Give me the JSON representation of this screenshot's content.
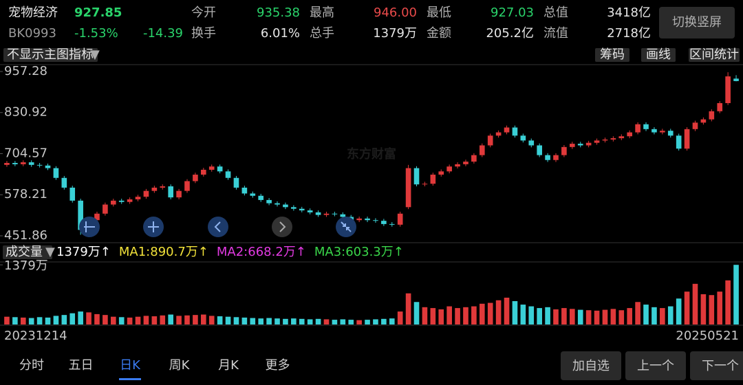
{
  "header": {
    "name": "宠物经济",
    "price": "927.85",
    "code": "BK0993",
    "change_pct": "-1.53%",
    "change": "-14.39",
    "stats": [
      {
        "label": "今开",
        "value": "935.38",
        "tone": "green"
      },
      {
        "label": "最高",
        "value": "946.00",
        "tone": "red"
      },
      {
        "label": "最低",
        "value": "927.03",
        "tone": "green"
      },
      {
        "label": "总值",
        "value": "3418亿",
        "tone": "white"
      },
      {
        "label": "换手",
        "value": "6.01%",
        "tone": "white"
      },
      {
        "label": "总手",
        "value": "1379万",
        "tone": "white"
      },
      {
        "label": "金额",
        "value": "205.2亿",
        "tone": "white"
      },
      {
        "label": "流值",
        "value": "2718亿",
        "tone": "white"
      }
    ],
    "button": "切换竖屏"
  },
  "toolbar": {
    "indicator": "不显示主图指标",
    "buttons": [
      "筹码",
      "画线",
      "区间统计"
    ]
  },
  "watermark": "东方财富",
  "volume_legend": {
    "title": "成交量",
    "items": [
      {
        "text": "1379万↑",
        "color": "#ffffff"
      },
      {
        "text": "MA1:890.7万↑",
        "color": "#f2e23a"
      },
      {
        "text": "MA2:668.2万↑",
        "color": "#e23ae2"
      },
      {
        "text": "MA3:603.3万↑",
        "color": "#3ad64a"
      }
    ]
  },
  "chart_data": [
    {
      "type": "candlestick",
      "up_color": "#e0393a",
      "down_color": "#3ad0d6",
      "ylim": [
        432.8,
        976.3
      ],
      "yticks": [
        451.86,
        578.21,
        704.57,
        830.92,
        957.28
      ],
      "date_range": [
        "20231214",
        "20250521"
      ],
      "open": [
        670,
        676,
        672,
        678,
        670,
        668,
        660,
        630,
        600,
        560,
        470,
        500,
        520,
        548,
        560,
        556,
        564,
        572,
        590,
        600,
        604,
        570,
        590,
        620,
        640,
        655,
        665,
        650,
        630,
        600,
        582,
        575,
        562,
        552,
        548,
        540,
        535,
        530,
        524,
        516,
        520,
        518,
        510,
        500,
        505,
        500,
        498,
        488,
        486,
        540,
        660,
        610,
        612,
        640,
        650,
        665,
        672,
        680,
        700,
        730,
        760,
        770,
        785,
        760,
        745,
        730,
        700,
        685,
        700,
        725,
        735,
        730,
        738,
        745,
        748,
        752,
        758,
        770,
        795,
        780,
        770,
        775,
        760,
        720,
        780,
        800,
        810,
        835,
        860,
        935.38
      ],
      "close": [
        676,
        672,
        678,
        670,
        668,
        660,
        630,
        600,
        560,
        470,
        500,
        520,
        548,
        560,
        556,
        564,
        572,
        590,
        600,
        604,
        570,
        590,
        620,
        640,
        655,
        665,
        650,
        630,
        600,
        582,
        575,
        562,
        552,
        548,
        540,
        535,
        530,
        524,
        516,
        520,
        518,
        510,
        500,
        505,
        500,
        498,
        488,
        486,
        520,
        660,
        610,
        612,
        640,
        650,
        665,
        672,
        680,
        700,
        730,
        760,
        770,
        785,
        760,
        745,
        730,
        700,
        685,
        700,
        725,
        735,
        730,
        738,
        745,
        748,
        752,
        758,
        770,
        795,
        780,
        770,
        775,
        760,
        720,
        780,
        800,
        810,
        835,
        860,
        942.24,
        927.85
      ],
      "high": [
        682,
        682,
        684,
        684,
        676,
        674,
        666,
        636,
        606,
        566,
        506,
        526,
        554,
        566,
        566,
        570,
        578,
        596,
        606,
        610,
        610,
        596,
        626,
        646,
        661,
        671,
        671,
        656,
        636,
        606,
        588,
        581,
        568,
        558,
        554,
        546,
        541,
        536,
        530,
        526,
        526,
        524,
        516,
        511,
        511,
        506,
        504,
        494,
        526,
        670,
        666,
        618,
        646,
        656,
        671,
        678,
        686,
        706,
        736,
        766,
        776,
        791,
        791,
        766,
        751,
        736,
        706,
        706,
        731,
        741,
        741,
        744,
        751,
        754,
        758,
        764,
        776,
        801,
        801,
        786,
        781,
        781,
        766,
        786,
        806,
        816,
        841,
        866,
        955,
        946
      ],
      "low": [
        664,
        666,
        666,
        664,
        662,
        654,
        624,
        594,
        554,
        455,
        464,
        494,
        514,
        542,
        550,
        550,
        558,
        566,
        584,
        594,
        564,
        564,
        584,
        614,
        634,
        649,
        644,
        624,
        594,
        576,
        569,
        556,
        546,
        542,
        534,
        529,
        524,
        518,
        510,
        510,
        512,
        504,
        494,
        494,
        494,
        492,
        482,
        480,
        480,
        534,
        604,
        604,
        606,
        634,
        644,
        659,
        666,
        674,
        694,
        724,
        754,
        764,
        754,
        739,
        724,
        694,
        679,
        679,
        694,
        719,
        724,
        724,
        732,
        739,
        742,
        746,
        752,
        764,
        774,
        764,
        764,
        754,
        714,
        714,
        774,
        794,
        804,
        829,
        854,
        927.03
      ]
    },
    {
      "type": "bar",
      "ylim": [
        0,
        1430
      ],
      "yticks": [
        {
          "value": 1379,
          "label": "1379万"
        }
      ],
      "values": [
        180,
        170,
        160,
        150,
        170,
        160,
        200,
        220,
        260,
        300,
        280,
        240,
        220,
        180,
        170,
        160,
        180,
        200,
        190,
        210,
        230,
        200,
        210,
        220,
        230,
        200,
        190,
        180,
        170,
        160,
        150,
        140,
        150,
        140,
        130,
        140,
        130,
        120,
        130,
        120,
        110,
        120,
        110,
        100,
        110,
        120,
        130,
        140,
        300,
        720,
        520,
        400,
        380,
        350,
        420,
        380,
        400,
        420,
        480,
        500,
        560,
        620,
        540,
        460,
        420,
        380,
        400,
        350,
        380,
        360,
        340,
        330,
        320,
        340,
        360,
        330,
        380,
        520,
        460,
        400,
        380,
        420,
        600,
        760,
        940,
        700,
        680,
        760,
        1020,
        1379
      ]
    }
  ],
  "tabs": [
    "分时",
    "五日",
    "日K",
    "周K",
    "月K",
    "更多"
  ],
  "actions": [
    "加自选",
    "上一个",
    "下一个"
  ]
}
